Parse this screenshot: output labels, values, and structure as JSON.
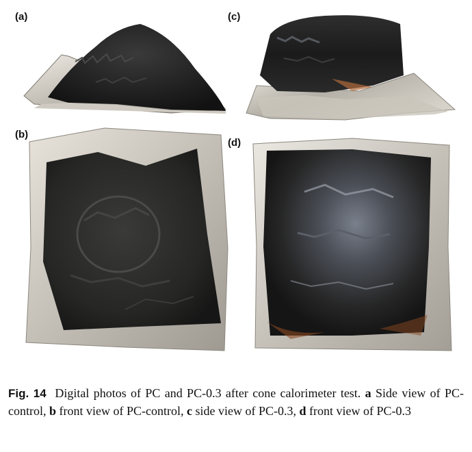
{
  "panels": [
    {
      "label": "(a)"
    },
    {
      "label": "(b)"
    },
    {
      "label": "(c)"
    },
    {
      "label": "(d)"
    }
  ],
  "caption": {
    "fig_label": "Fig. 14",
    "intro": "Digital photos of PC and PC-0.3 after cone calorimeter test.",
    "parts": [
      {
        "letter": "a",
        "text": "Side view of PC-control,"
      },
      {
        "letter": "b",
        "text": "front view of PC-control,"
      },
      {
        "letter": "c",
        "text": "side view of PC-0.3,"
      },
      {
        "letter": "d",
        "text": "front view of PC-0.3"
      }
    ]
  },
  "colors": {
    "char_dark": "#1c1c1c",
    "char_mid": "#2f2f2f",
    "foil_light": "#d9d6cf",
    "foil_mid": "#a9a59c",
    "char_gray_tint": "#6e7480"
  }
}
